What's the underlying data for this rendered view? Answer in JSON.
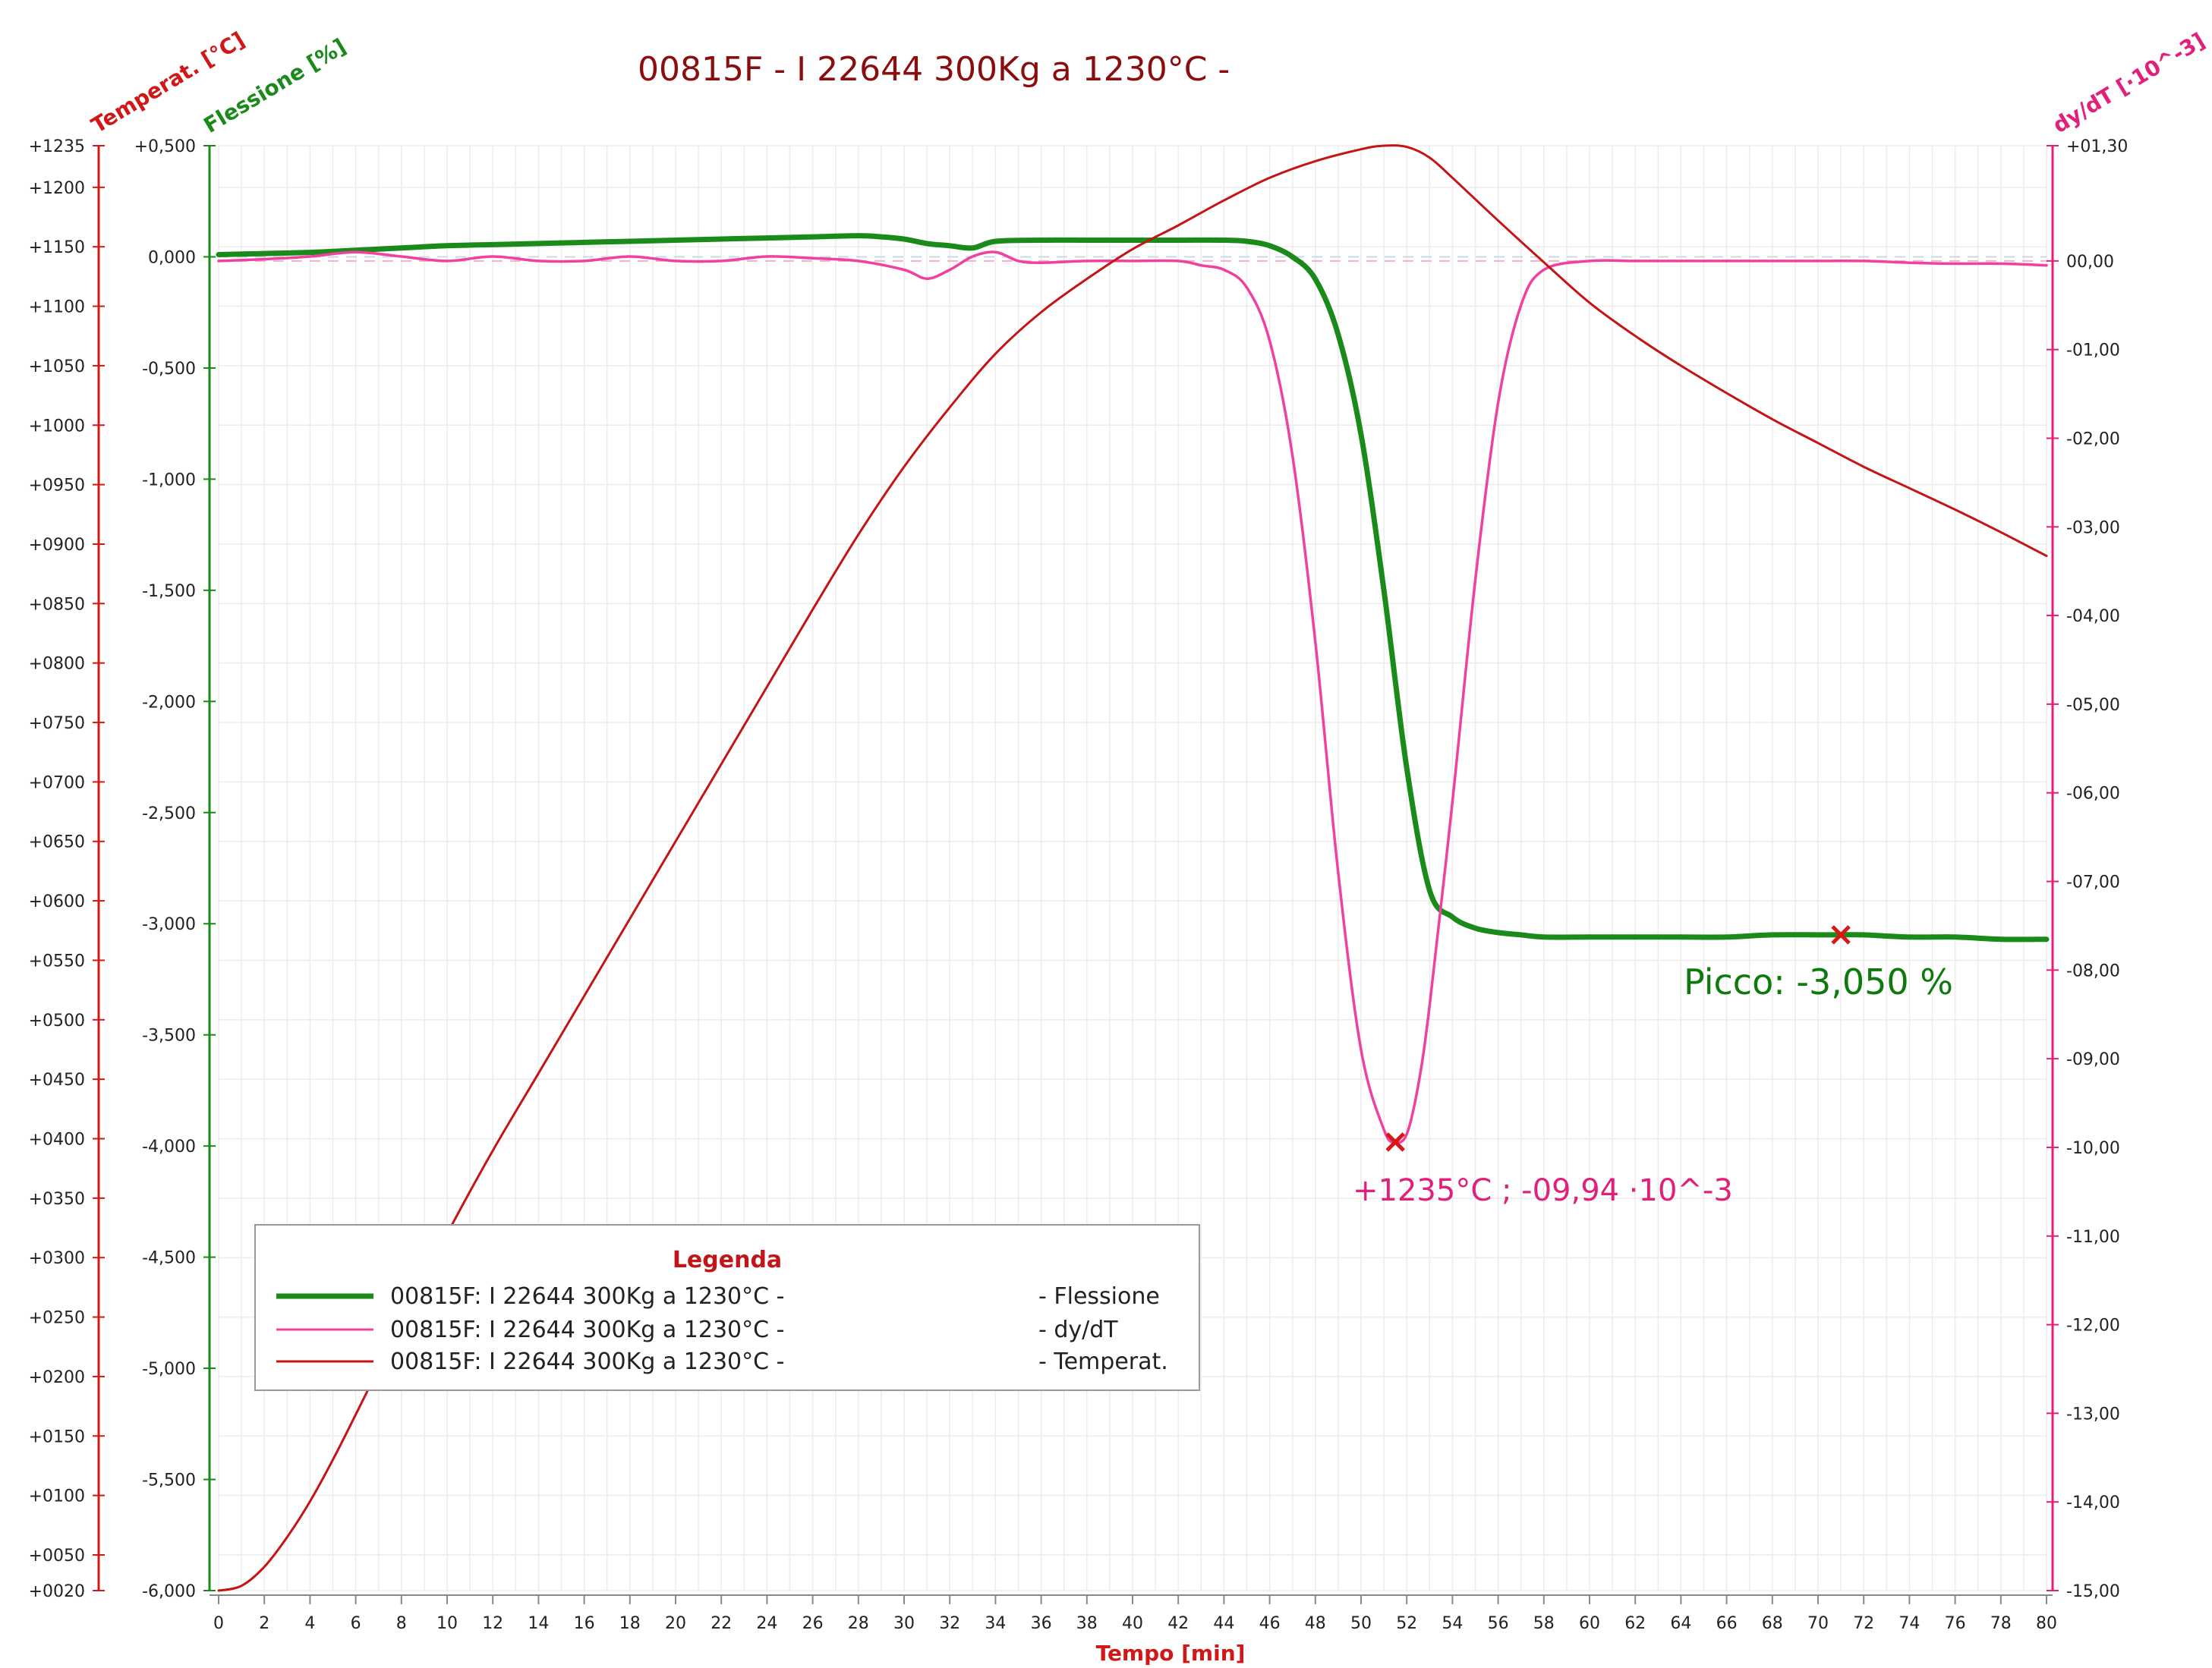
{
  "chart_data": {
    "type": "line",
    "title": "00815F - I 22644 300Kg a 1230°C -",
    "xlabel": "Tempo [min]",
    "x_ticks": [
      0,
      2,
      4,
      6,
      8,
      10,
      12,
      14,
      16,
      18,
      20,
      22,
      24,
      26,
      28,
      30,
      32,
      34,
      36,
      38,
      40,
      42,
      44,
      46,
      48,
      50,
      52,
      54,
      56,
      58,
      60,
      62,
      64,
      66,
      68,
      70,
      72,
      74,
      76,
      78,
      80
    ],
    "xlim": [
      0,
      80
    ],
    "axes": {
      "temperature": {
        "label": "Temperat. [°C]",
        "color": "#d01818",
        "ylim": [
          20,
          1235
        ],
        "ticks": [
          "+1235",
          "+1200",
          "+1150",
          "+1100",
          "+1050",
          "+1000",
          "+0950",
          "+0900",
          "+0850",
          "+0800",
          "+0750",
          "+0700",
          "+0650",
          "+0600",
          "+0550",
          "+0500",
          "+0450",
          "+0400",
          "+0350",
          "+0300",
          "+0250",
          "+0200",
          "+0150",
          "+0100",
          "+0050",
          "+0020"
        ]
      },
      "flessione": {
        "label": "Flessione [%]",
        "color": "#1a8a1a",
        "ylim": [
          -6.0,
          0.5
        ],
        "ticks": [
          "+0,500",
          "0,000",
          "-0,500",
          "-1,000",
          "-1,500",
          "-2,000",
          "-2,500",
          "-3,000",
          "-3,500",
          "-4,000",
          "-4,500",
          "-5,000",
          "-5,500",
          "-6,000"
        ]
      },
      "dydt": {
        "label": "dy/dT [·10^-3]",
        "color": "#e0207a",
        "ylim": [
          -15.0,
          1.3
        ],
        "ticks": [
          "+01,30",
          "00,00",
          "-01,00",
          "-02,00",
          "-03,00",
          "-04,00",
          "-05,00",
          "-06,00",
          "-07,00",
          "-08,00",
          "-09,00",
          "-10,00",
          "-11,00",
          "-12,00",
          "-13,00",
          "-14,00",
          "-15,00"
        ]
      }
    },
    "series": [
      {
        "name": "00815F: I 22644 300Kg a 1230°C - Flessione",
        "axis": "flessione",
        "color": "#1a8a1a",
        "x": [
          0,
          2,
          4,
          6,
          8,
          10,
          12,
          14,
          16,
          18,
          20,
          22,
          24,
          26,
          28,
          29,
          30,
          31,
          32,
          33,
          34,
          36,
          38,
          40,
          42,
          44,
          45,
          46,
          47,
          48,
          49,
          50,
          51,
          52,
          53,
          54,
          55,
          56,
          57,
          58,
          60,
          62,
          64,
          66,
          68,
          70,
          71,
          72,
          74,
          76,
          78,
          80
        ],
        "y": [
          0.01,
          0.015,
          0.02,
          0.03,
          0.04,
          0.05,
          0.055,
          0.06,
          0.065,
          0.07,
          0.075,
          0.08,
          0.085,
          0.09,
          0.095,
          0.09,
          0.08,
          0.06,
          0.05,
          0.04,
          0.07,
          0.075,
          0.075,
          0.075,
          0.075,
          0.075,
          0.07,
          0.05,
          0.0,
          -0.1,
          -0.35,
          -0.8,
          -1.5,
          -2.3,
          -2.85,
          -2.97,
          -3.02,
          -3.04,
          -3.05,
          -3.06,
          -3.06,
          -3.06,
          -3.06,
          -3.06,
          -3.05,
          -3.05,
          -3.05,
          -3.05,
          -3.06,
          -3.06,
          -3.07,
          -3.07
        ]
      },
      {
        "name": "00815F: I 22644 300Kg a 1230°C - dy/dT",
        "axis": "dydt",
        "color": "#f040a0",
        "x": [
          0,
          2,
          4,
          6,
          8,
          10,
          12,
          14,
          16,
          18,
          20,
          22,
          24,
          26,
          28,
          30,
          31,
          32,
          33,
          34,
          35,
          36,
          38,
          40,
          42,
          43,
          44,
          45,
          46,
          47,
          48,
          49,
          50,
          51,
          51.5,
          52,
          52.5,
          53,
          54,
          55,
          56,
          57,
          58,
          60,
          62,
          64,
          66,
          68,
          70,
          72,
          74,
          76,
          78,
          80
        ],
        "y": [
          0.0,
          0.02,
          0.05,
          0.1,
          0.05,
          0.0,
          0.05,
          0.0,
          0.0,
          0.05,
          0.0,
          0.0,
          0.05,
          0.03,
          0.0,
          -0.1,
          -0.2,
          -0.1,
          0.05,
          0.1,
          0.0,
          -0.02,
          0.0,
          0.0,
          0.0,
          -0.05,
          -0.1,
          -0.3,
          -0.9,
          -2.2,
          -4.3,
          -6.9,
          -8.9,
          -9.8,
          -9.94,
          -9.85,
          -9.3,
          -8.4,
          -6.1,
          -3.6,
          -1.6,
          -0.5,
          -0.1,
          0.0,
          0.0,
          0.0,
          0.0,
          0.0,
          0.0,
          0.0,
          -0.02,
          -0.03,
          -0.03,
          -0.05
        ]
      },
      {
        "name": "00815F: I 22644 300Kg a 1230°C - Temperat.",
        "axis": "temperature",
        "color": "#c41414",
        "x": [
          0,
          1,
          2,
          3,
          4,
          5,
          6,
          8,
          10,
          12,
          14,
          16,
          18,
          20,
          22,
          24,
          26,
          28,
          30,
          32,
          34,
          36,
          38,
          40,
          42,
          44,
          46,
          48,
          50,
          51,
          52,
          53,
          54,
          56,
          58,
          60,
          62,
          64,
          66,
          68,
          70,
          72,
          74,
          76,
          78,
          80
        ],
        "y": [
          20,
          24,
          40,
          65,
          95,
          130,
          168,
          245,
          320,
          390,
          455,
          520,
          585,
          650,
          715,
          780,
          845,
          908,
          965,
          1015,
          1060,
          1095,
          1123,
          1148,
          1168,
          1189,
          1208,
          1222,
          1232,
          1235,
          1234,
          1225,
          1208,
          1172,
          1137,
          1103,
          1075,
          1050,
          1027,
          1005,
          985,
          965,
          947,
          929,
          910,
          890
        ]
      }
    ],
    "legend": {
      "title": "Legenda",
      "position": "bottom-left",
      "entries": [
        {
          "label": "00815F: I 22644 300Kg a 1230°C -",
          "suffix": "- Flessione",
          "color": "#1a8a1a"
        },
        {
          "label": "00815F: I 22644 300Kg a 1230°C -",
          "suffix": "- dy/dT",
          "color": "#f040a0"
        },
        {
          "label": "00815F: I 22644 300Kg a 1230°C -",
          "suffix": "- Temperat.",
          "color": "#c41414"
        }
      ]
    },
    "annotations": [
      {
        "text": "Picco: -3,050 %",
        "axis": "flessione",
        "x": 71,
        "y": -3.05,
        "color": "#0e7a0e"
      },
      {
        "text": "+1235°C ; -09,94 ·10^-3",
        "axis": "dydt",
        "x": 51.5,
        "y": -9.94,
        "color": "#e0207a"
      }
    ],
    "grid": true
  }
}
